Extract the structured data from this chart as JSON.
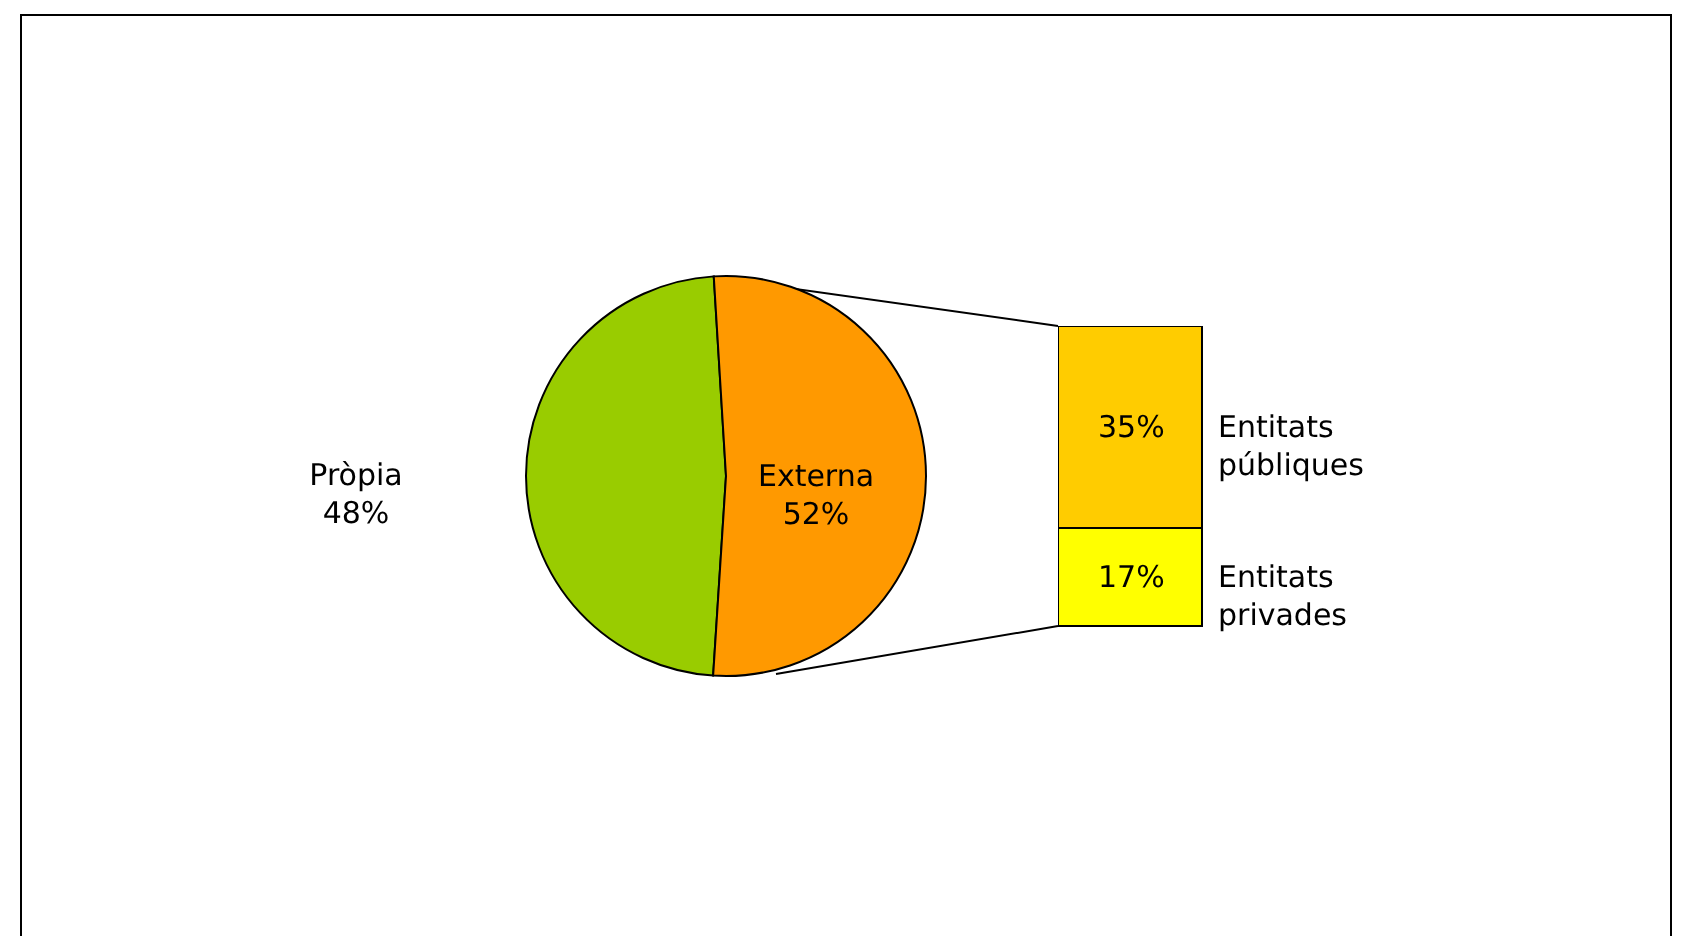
{
  "chart_data": [
    {
      "type": "pie",
      "categories": [
        "Pròpia",
        "Externa"
      ],
      "values": [
        48,
        52
      ],
      "colors": [
        "#99cc00",
        "#ff9900"
      ],
      "value_labels": [
        "48%",
        "52%"
      ]
    },
    {
      "type": "bar",
      "stacked": true,
      "tick_labels": false,
      "categories": [
        null
      ],
      "series": [
        {
          "name": "Entitats privades",
          "color": "#ffff00",
          "values": [
            17
          ],
          "value_labels": [
            "17%"
          ]
        },
        {
          "name": "Entitats públiques",
          "color": "#ffcc00",
          "values": [
            35
          ],
          "value_labels": [
            "35%"
          ]
        }
      ]
    }
  ]
}
